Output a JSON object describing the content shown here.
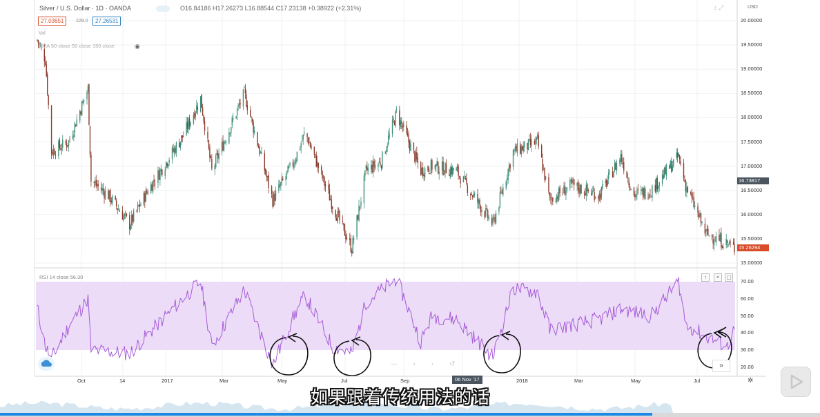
{
  "colors": {
    "up": "#3f8f7b",
    "down": "#8b3a2b",
    "rsi_line": "#a55bd6",
    "rsi_band": "#ecdcf8",
    "last_price": "#d94c2a",
    "current_price": "#4a5560",
    "grid": "#eef1f3",
    "annotation": "#111111",
    "progress": "#1e88e5"
  },
  "header": {
    "symbol": "Silver / U.S. Dollar · 1D · OANDA",
    "ohlc": "O16.84186 H17.26273 L16.88544 C17.23138 +0.38922 (+2.31%)",
    "sell_price": "27.03651",
    "spread": "229.0",
    "buy_price": "27.26531",
    "vol_label": "Vol",
    "ma_label": "SMA 50 close 50 close 150 close",
    "ma_icon": "eye-icon",
    "currency": "USD"
  },
  "price_axis": {
    "ticks": [
      "20.00000",
      "19.50000",
      "19.00000",
      "18.50000",
      "18.00000",
      "17.50000",
      "17.00000",
      "16.50000",
      "16.00000",
      "15.50000",
      "15.00000"
    ],
    "current_tag": "16.73817",
    "last_tag": "15.26294"
  },
  "rsi": {
    "label": "RSI 14 close 56.30",
    "ticks": [
      "70.00",
      "60.00",
      "50.00",
      "40.00",
      "30.00",
      "20.00"
    ]
  },
  "time_axis": {
    "ticks": [
      "Oct",
      "14",
      "2017",
      "Mar",
      "May",
      "Jul",
      "Sep",
      "2018",
      "Mar",
      "May",
      "Jul"
    ],
    "crosshair_label": "06 Nov '17"
  },
  "subtitle": "如果跟着传统用法的话",
  "icons": {
    "cloud": "cloud-icon",
    "forward": "double-chevron-right-icon",
    "settings": "gear-icon",
    "play": "play-icon"
  },
  "chart_data": {
    "type": "candlestick",
    "symbol": "Silver / U.S. Dollar",
    "interval": "1D",
    "y_range": [
      15.0,
      20.0
    ],
    "close_anchors": [
      [
        "2016-09-19",
        19.6
      ],
      [
        "2016-09-27",
        19.2
      ],
      [
        "2016-10-03",
        17.3
      ],
      [
        "2016-10-20",
        17.5
      ],
      [
        "2016-11-08",
        18.6
      ],
      [
        "2016-11-11",
        16.7
      ],
      [
        "2016-11-28",
        16.4
      ],
      [
        "2016-12-19",
        15.8
      ],
      [
        "2017-01-06",
        16.5
      ],
      [
        "2017-02-09",
        17.6
      ],
      [
        "2017-02-27",
        18.4
      ],
      [
        "2017-03-10",
        16.9
      ],
      [
        "2017-04-11",
        18.5
      ],
      [
        "2017-05-09",
        16.3
      ],
      [
        "2017-05-30",
        17.1
      ],
      [
        "2017-06-10",
        17.7
      ],
      [
        "2017-07-07",
        16.2
      ],
      [
        "2017-07-26",
        15.3
      ],
      [
        "2017-08-09",
        16.9
      ],
      [
        "2017-08-24",
        17.1
      ],
      [
        "2017-09-08",
        18.1
      ],
      [
        "2017-10-02",
        16.9
      ],
      [
        "2017-10-13",
        17.0
      ],
      [
        "2017-11-06",
        16.9
      ],
      [
        "2017-12-12",
        15.8
      ],
      [
        "2018-01-01",
        17.3
      ],
      [
        "2018-01-25",
        17.5
      ],
      [
        "2018-02-06",
        16.3
      ],
      [
        "2018-02-27",
        16.6
      ],
      [
        "2018-03-27",
        16.4
      ],
      [
        "2018-04-17",
        17.2
      ],
      [
        "2018-04-30",
        16.4
      ],
      [
        "2018-05-17",
        16.5
      ],
      [
        "2018-06-13",
        17.2
      ],
      [
        "2018-06-20",
        16.6
      ],
      [
        "2018-07-10",
        15.6
      ],
      [
        "2018-07-31",
        15.4
      ],
      [
        "2018-08-07",
        15.3
      ]
    ],
    "rsi_anchors": [
      [
        "2016-09-19",
        55
      ],
      [
        "2016-09-27",
        32
      ],
      [
        "2016-10-03",
        25
      ],
      [
        "2016-10-20",
        44
      ],
      [
        "2016-11-08",
        60
      ],
      [
        "2016-11-11",
        30
      ],
      [
        "2016-12-19",
        28
      ],
      [
        "2017-02-09",
        60
      ],
      [
        "2017-02-27",
        70
      ],
      [
        "2017-03-10",
        32
      ],
      [
        "2017-04-11",
        65
      ],
      [
        "2017-05-09",
        21
      ],
      [
        "2017-05-30",
        50
      ],
      [
        "2017-06-10",
        62
      ],
      [
        "2017-07-07",
        32
      ],
      [
        "2017-07-26",
        28
      ],
      [
        "2017-08-09",
        58
      ],
      [
        "2017-09-08",
        72
      ],
      [
        "2017-10-02",
        35
      ],
      [
        "2017-10-13",
        50
      ],
      [
        "2017-11-06",
        48
      ],
      [
        "2017-12-12",
        26
      ],
      [
        "2018-01-01",
        66
      ],
      [
        "2018-01-25",
        64
      ],
      [
        "2018-02-06",
        42
      ],
      [
        "2018-03-27",
        48
      ],
      [
        "2018-04-17",
        54
      ],
      [
        "2018-05-17",
        50
      ],
      [
        "2018-06-13",
        70
      ],
      [
        "2018-06-20",
        45
      ],
      [
        "2018-07-10",
        38
      ],
      [
        "2018-07-31",
        32
      ],
      [
        "2018-08-07",
        42
      ]
    ],
    "rsi_band": [
      30,
      70
    ]
  }
}
